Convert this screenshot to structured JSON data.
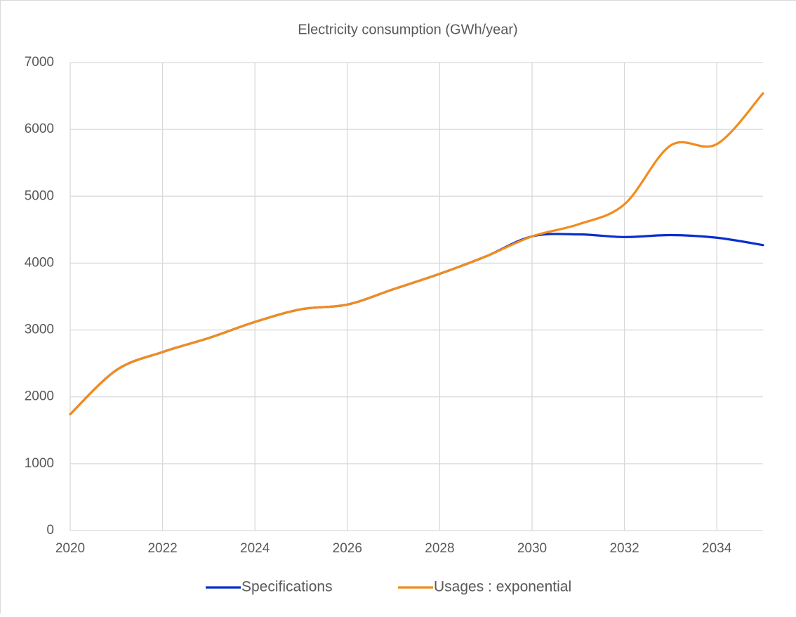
{
  "chart_data": {
    "type": "line",
    "title": "Electricity consumption (GWh/year)",
    "x": [
      2020,
      2021,
      2022,
      2023,
      2024,
      2025,
      2026,
      2027,
      2028,
      2029,
      2030,
      2031,
      2032,
      2033,
      2034,
      2035
    ],
    "series": [
      {
        "name": "Specifications",
        "color": "#0a2fcc",
        "values": [
          1740,
          2400,
          2670,
          2880,
          3120,
          3310,
          3380,
          3610,
          3840,
          4100,
          4400,
          4430,
          4390,
          4420,
          4380,
          4270
        ]
      },
      {
        "name": "Usages : exponential",
        "color": "#f28c1c",
        "values": [
          1740,
          2400,
          2670,
          2880,
          3120,
          3310,
          3380,
          3610,
          3840,
          4100,
          4400,
          4580,
          4880,
          5760,
          5780,
          6540
        ]
      }
    ],
    "xlim": [
      2020,
      2035
    ],
    "xticks": [
      2020,
      2022,
      2024,
      2026,
      2028,
      2030,
      2032,
      2034
    ],
    "ylim": [
      0,
      7000
    ],
    "yticks": [
      0,
      1000,
      2000,
      3000,
      4000,
      5000,
      6000,
      7000
    ],
    "grid": true,
    "legend": "bottom"
  }
}
